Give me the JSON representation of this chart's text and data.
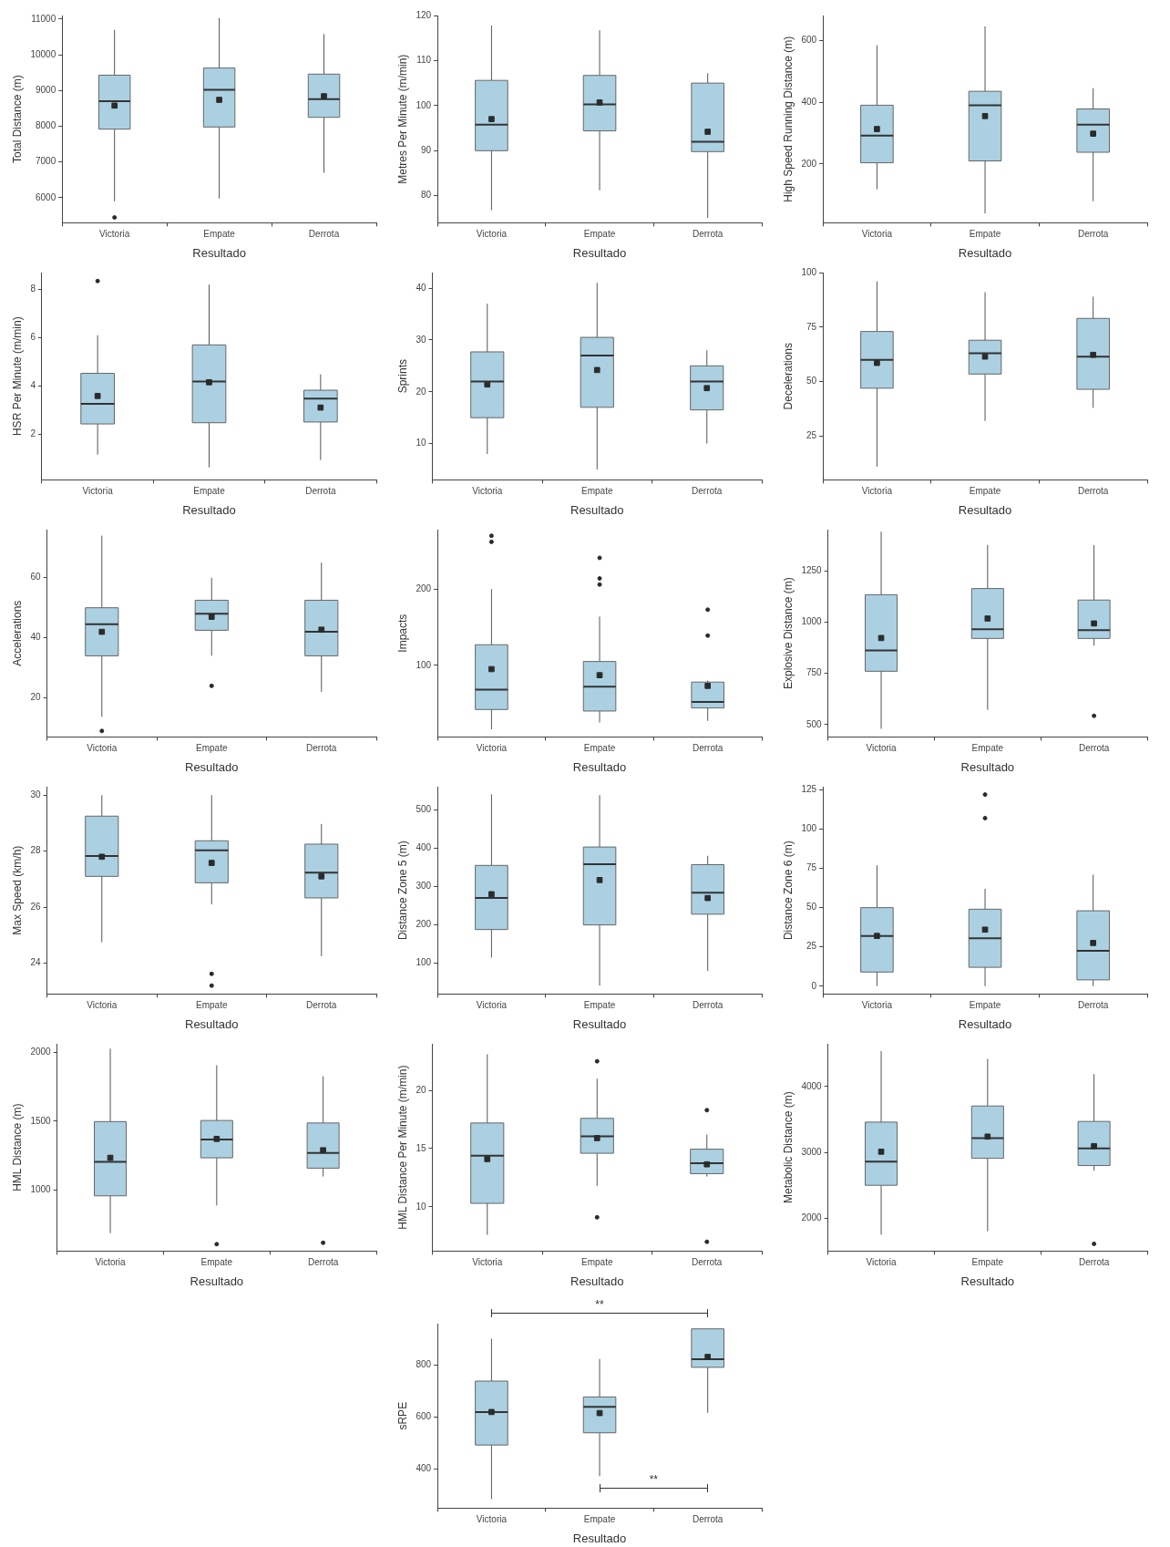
{
  "chart_data": [
    {
      "type": "box",
      "categories": [
        "Victoria",
        "Empate",
        "Derrota"
      ],
      "xlabel": "Resultado",
      "ylabel": "Total Distance (m)",
      "color": "#abd0e2",
      "ylim": [
        5300,
        11100
      ],
      "yticks": [
        6000,
        7000,
        8000,
        9000,
        10000,
        11000
      ],
      "boxes": [
        {
          "low": 5900,
          "q1": 7920,
          "median": 8700,
          "q3": 9430,
          "high": 10700,
          "mean": 8580,
          "outliers": [
            5450
          ]
        },
        {
          "low": 5980,
          "q1": 7980,
          "median": 9020,
          "q3": 9630,
          "high": 11030,
          "mean": 8740
        },
        {
          "low": 6700,
          "q1": 8250,
          "median": 8760,
          "q3": 9460,
          "high": 10580,
          "mean": 8840
        }
      ]
    },
    {
      "type": "box",
      "categories": [
        "Victoria",
        "Empate",
        "Derrota"
      ],
      "xlabel": "Resultado",
      "ylabel": "Metres Per Minute (m/min)",
      "color": "#abd0e2",
      "ylim": [
        74,
        120
      ],
      "yticks": [
        80,
        90,
        100,
        110,
        120
      ],
      "boxes": [
        {
          "low": 76.8,
          "q1": 90,
          "median": 95.8,
          "q3": 105.6,
          "high": 117.8,
          "mean": 97
        },
        {
          "low": 81.2,
          "q1": 94.4,
          "median": 100.3,
          "q3": 106.7,
          "high": 116.7,
          "mean": 100.7
        },
        {
          "low": 75.1,
          "q1": 89.8,
          "median": 92,
          "q3": 105,
          "high": 107.2,
          "mean": 94.2
        }
      ]
    },
    {
      "type": "box",
      "categories": [
        "Victoria",
        "Empate",
        "Derrota"
      ],
      "xlabel": "Resultado",
      "ylabel": "High Speed Running Distance (m)",
      "color": "#abd0e2",
      "ylim": [
        10,
        680
      ],
      "yticks": [
        200,
        400,
        600
      ],
      "boxes": [
        {
          "low": 118,
          "q1": 204,
          "median": 292,
          "q3": 390,
          "high": 584,
          "mean": 313
        },
        {
          "low": 40,
          "q1": 210,
          "median": 390,
          "q3": 435,
          "high": 645,
          "mean": 355
        },
        {
          "low": 80,
          "q1": 238,
          "median": 327,
          "q3": 378,
          "high": 445,
          "mean": 298
        }
      ]
    },
    {
      "type": "box",
      "categories": [
        "Victoria",
        "Empate",
        "Derrota"
      ],
      "xlabel": "Resultado",
      "ylabel": "HSR Per Minute (m/min)",
      "color": "#abd0e2",
      "ylim": [
        0.1,
        8.7
      ],
      "yticks": [
        2,
        4,
        6,
        8
      ],
      "boxes": [
        {
          "low": 1.15,
          "q1": 2.42,
          "median": 3.25,
          "q3": 4.52,
          "high": 6.1,
          "mean": 3.58,
          "outliers": [
            8.35
          ]
        },
        {
          "low": 0.62,
          "q1": 2.47,
          "median": 4.18,
          "q3": 5.7,
          "high": 8.2,
          "mean": 4.15
        },
        {
          "low": 0.92,
          "q1": 2.5,
          "median": 3.47,
          "q3": 3.82,
          "high": 4.48,
          "mean": 3.1
        }
      ]
    },
    {
      "type": "box",
      "categories": [
        "Victoria",
        "Empate",
        "Derrota"
      ],
      "xlabel": "Resultado",
      "ylabel": "Sprints",
      "color": "#abd0e2",
      "ylim": [
        3,
        43
      ],
      "yticks": [
        10,
        20,
        30,
        40
      ],
      "boxes": [
        {
          "low": 8,
          "q1": 15,
          "median": 22,
          "q3": 27.7,
          "high": 37,
          "mean": 21.4
        },
        {
          "low": 5,
          "q1": 17,
          "median": 27,
          "q3": 30.5,
          "high": 41,
          "mean": 24.2
        },
        {
          "low": 10,
          "q1": 16.5,
          "median": 22,
          "q3": 25,
          "high": 28,
          "mean": 20.7
        }
      ]
    },
    {
      "type": "box",
      "categories": [
        "Victoria",
        "Empate",
        "Derrota"
      ],
      "xlabel": "Resultado",
      "ylabel": "Decelerations",
      "color": "#abd0e2",
      "ylim": [
        5,
        100
      ],
      "yticks": [
        25,
        50,
        75,
        100
      ],
      "boxes": [
        {
          "low": 11,
          "q1": 47,
          "median": 60,
          "q3": 73,
          "high": 96,
          "mean": 58.6
        },
        {
          "low": 32,
          "q1": 53.5,
          "median": 63,
          "q3": 69,
          "high": 91,
          "mean": 61.5
        },
        {
          "low": 38,
          "q1": 46.5,
          "median": 61.5,
          "q3": 79,
          "high": 89,
          "mean": 62.3
        }
      ]
    },
    {
      "type": "box",
      "categories": [
        "Victoria",
        "Empate",
        "Derrota"
      ],
      "xlabel": "Resultado",
      "ylabel": "Accelerations",
      "color": "#abd0e2",
      "ylim": [
        7,
        76
      ],
      "yticks": [
        20,
        40,
        60
      ],
      "boxes": [
        {
          "low": 13.7,
          "q1": 34,
          "median": 44.5,
          "q3": 50,
          "high": 74,
          "mean": 42,
          "outliers": [
            9
          ]
        },
        {
          "low": 34,
          "q1": 42.5,
          "median": 48,
          "q3": 52.5,
          "high": 60,
          "mean": 47,
          "outliers": [
            24
          ]
        },
        {
          "low": 22,
          "q1": 34,
          "median": 42,
          "q3": 52.5,
          "high": 65,
          "mean": 42.7
        }
      ]
    },
    {
      "type": "box",
      "categories": [
        "Victoria",
        "Empate",
        "Derrota"
      ],
      "xlabel": "Resultado",
      "ylabel": "Impacts",
      "color": "#abd0e2",
      "ylim": [
        6,
        278
      ],
      "yticks": [
        100,
        200
      ],
      "boxes": [
        {
          "low": 16,
          "q1": 42,
          "median": 68,
          "q3": 127,
          "high": 200,
          "mean": 95,
          "outliers": [
            262,
            270
          ]
        },
        {
          "low": 25,
          "q1": 40,
          "median": 72,
          "q3": 105,
          "high": 164,
          "mean": 87,
          "outliers": [
            206,
            214,
            241
          ]
        },
        {
          "low": 27,
          "q1": 44,
          "median": 52,
          "q3": 78,
          "high": 80,
          "mean": 73,
          "outliers": [
            139,
            173
          ]
        }
      ]
    },
    {
      "type": "box",
      "categories": [
        "Victoria",
        "Empate",
        "Derrota"
      ],
      "xlabel": "Resultado",
      "ylabel": "Explosive Distance (m)",
      "color": "#abd0e2",
      "ylim": [
        440,
        1450
      ],
      "yticks": [
        500,
        750,
        1000,
        1250
      ],
      "boxes": [
        {
          "low": 480,
          "q1": 760,
          "median": 862,
          "q3": 1133,
          "high": 1440,
          "mean": 922
        },
        {
          "low": 572,
          "q1": 920,
          "median": 965,
          "q3": 1163,
          "high": 1375,
          "mean": 1017
        },
        {
          "low": 885,
          "q1": 920,
          "median": 960,
          "q3": 1107,
          "high": 1375,
          "mean": 993,
          "outliers": [
            543
          ]
        }
      ]
    },
    {
      "type": "box",
      "categories": [
        "Victoria",
        "Empate",
        "Derrota"
      ],
      "xlabel": "Resultado",
      "ylabel": "Max Speed (km/h)",
      "color": "#abd0e2",
      "ylim": [
        22.9,
        30.3
      ],
      "yticks": [
        24,
        26,
        28,
        30
      ],
      "boxes": [
        {
          "low": 24.75,
          "q1": 27.1,
          "median": 27.83,
          "q3": 29.25,
          "high": 30,
          "mean": 27.8
        },
        {
          "low": 26.1,
          "q1": 26.87,
          "median": 28.03,
          "q3": 28.37,
          "high": 30,
          "mean": 27.58,
          "outliers": [
            23.2,
            23.62
          ]
        },
        {
          "low": 24.25,
          "q1": 26.33,
          "median": 27.23,
          "q3": 28.25,
          "high": 28.97,
          "mean": 27.1
        }
      ]
    },
    {
      "type": "box",
      "categories": [
        "Victoria",
        "Empate",
        "Derrota"
      ],
      "xlabel": "Resultado",
      "ylabel": "Distance Zone 5 (m)",
      "color": "#abd0e2",
      "ylim": [
        20,
        560
      ],
      "yticks": [
        100,
        200,
        300,
        400,
        500
      ],
      "boxes": [
        {
          "low": 115,
          "q1": 188,
          "median": 270,
          "q3": 355,
          "high": 540,
          "mean": 280
        },
        {
          "low": 42,
          "q1": 200,
          "median": 358,
          "q3": 403,
          "high": 538,
          "mean": 317
        },
        {
          "low": 80,
          "q1": 228,
          "median": 284,
          "q3": 357,
          "high": 380,
          "mean": 270
        }
      ]
    },
    {
      "type": "box",
      "categories": [
        "Victoria",
        "Empate",
        "Derrota"
      ],
      "xlabel": "Resultado",
      "ylabel": "Distance Zone 6 (m)",
      "color": "#abd0e2",
      "ylim": [
        -5,
        127
      ],
      "yticks": [
        0,
        25,
        50,
        75,
        100,
        125
      ],
      "boxes": [
        {
          "low": 0,
          "q1": 9,
          "median": 32,
          "q3": 50,
          "high": 77,
          "mean": 32
        },
        {
          "low": 0,
          "q1": 12,
          "median": 30.5,
          "q3": 49,
          "high": 62,
          "mean": 36,
          "outliers": [
            107,
            122
          ]
        },
        {
          "low": 0,
          "q1": 4,
          "median": 22.5,
          "q3": 48,
          "high": 71,
          "mean": 27.5
        }
      ]
    },
    {
      "type": "box",
      "categories": [
        "Victoria",
        "Empate",
        "Derrota"
      ],
      "xlabel": "Resultado",
      "ylabel": "HML Distance (m)",
      "color": "#abd0e2",
      "ylim": [
        560,
        2060
      ],
      "yticks": [
        1000,
        1500,
        2000
      ],
      "boxes": [
        {
          "low": 690,
          "q1": 960,
          "median": 1205,
          "q3": 1497,
          "high": 2025,
          "mean": 1235
        },
        {
          "low": 890,
          "q1": 1235,
          "median": 1368,
          "q3": 1505,
          "high": 1905,
          "mean": 1372,
          "outliers": [
            610
          ]
        },
        {
          "low": 1100,
          "q1": 1160,
          "median": 1270,
          "q3": 1487,
          "high": 1825,
          "mean": 1290,
          "outliers": [
            620
          ]
        }
      ]
    },
    {
      "type": "box",
      "categories": [
        "Victoria",
        "Empate",
        "Derrota"
      ],
      "xlabel": "Resultado",
      "ylabel": "HML Distance Per Minute (m/min)",
      "color": "#abd0e2",
      "ylim": [
        6.2,
        24
      ],
      "yticks": [
        10,
        15,
        20
      ],
      "boxes": [
        {
          "low": 7.6,
          "q1": 10.3,
          "median": 14.4,
          "q3": 17.2,
          "high": 23.1,
          "mean": 14.1
        },
        {
          "low": 11.8,
          "q1": 14.6,
          "median": 16.05,
          "q3": 17.6,
          "high": 21,
          "mean": 15.9,
          "outliers": [
            9.1,
            22.5
          ]
        },
        {
          "low": 12.6,
          "q1": 12.85,
          "median": 13.75,
          "q3": 14.95,
          "high": 16.2,
          "mean": 13.65,
          "outliers": [
            7,
            18.3
          ]
        }
      ]
    },
    {
      "type": "box",
      "categories": [
        "Victoria",
        "Empate",
        "Derrota"
      ],
      "xlabel": "Resultado",
      "ylabel": "Metabolic Distance (m)",
      "color": "#abd0e2",
      "ylim": [
        1500,
        4650
      ],
      "yticks": [
        2000,
        3000,
        4000
      ],
      "boxes": [
        {
          "low": 1750,
          "q1": 2500,
          "median": 2860,
          "q3": 3460,
          "high": 4540,
          "mean": 3010
        },
        {
          "low": 1800,
          "q1": 2910,
          "median": 3215,
          "q3": 3705,
          "high": 4420,
          "mean": 3240
        },
        {
          "low": 2720,
          "q1": 2800,
          "median": 3060,
          "q3": 3470,
          "high": 4190,
          "mean": 3095,
          "outliers": [
            1610
          ]
        }
      ]
    },
    {
      "type": "box",
      "categories": [
        "Victoria",
        "Empate",
        "Derrota"
      ],
      "xlabel": "Resultado",
      "ylabel": "sRPE",
      "color": "#abd0e2",
      "ylim": [
        250,
        960
      ],
      "yticks": [
        400,
        600,
        800
      ],
      "annotations": [
        "**",
        "**"
      ],
      "boxes": [
        {
          "low": 285,
          "q1": 493,
          "median": 620,
          "q3": 739,
          "high": 902,
          "mean": 620
        },
        {
          "low": 373,
          "q1": 540,
          "median": 640,
          "q3": 678,
          "high": 824,
          "mean": 616
        },
        {
          "low": 617,
          "q1": 792,
          "median": 823,
          "q3": 940,
          "high": 940,
          "mean": 832
        }
      ]
    }
  ]
}
